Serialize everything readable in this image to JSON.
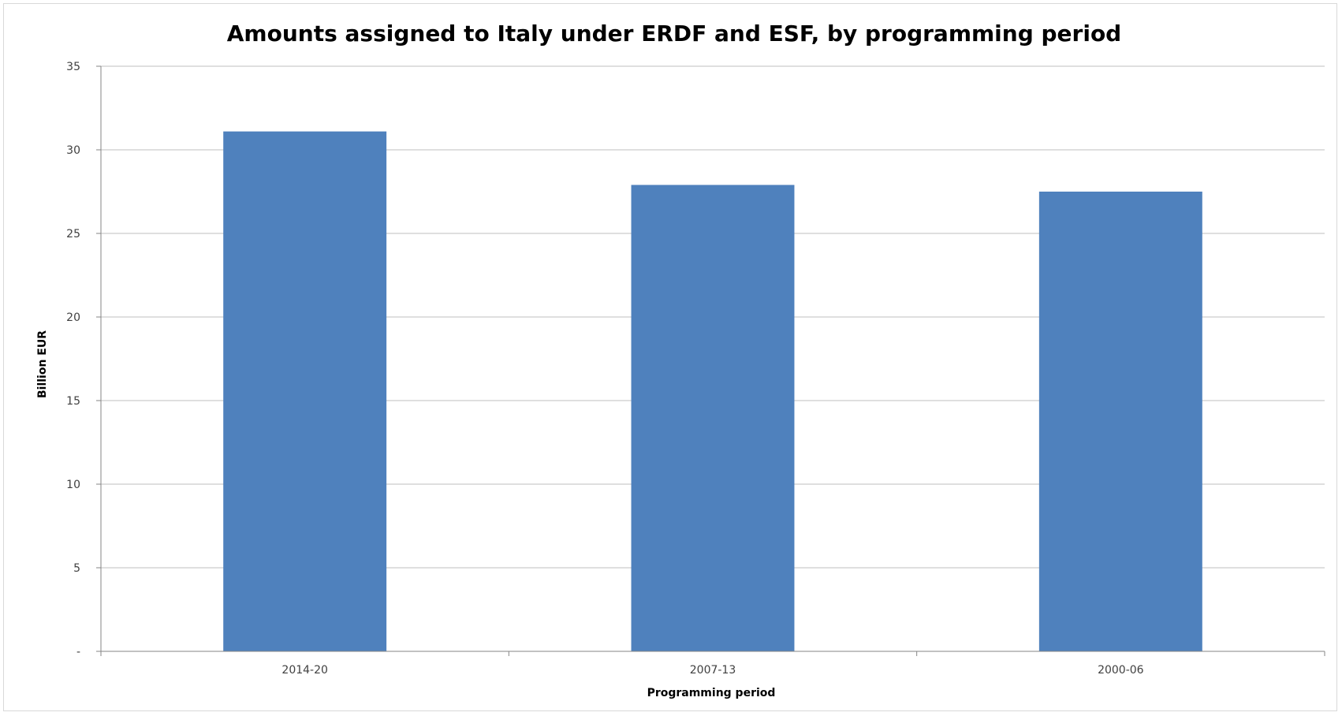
{
  "chart_data": {
    "type": "bar",
    "title": "Amounts assigned to Italy under ERDF and ESF, by programming period",
    "xlabel": "Programming period",
    "ylabel": "Billion EUR",
    "categories": [
      "2014-20",
      "2007-13",
      "2000-06"
    ],
    "values": [
      31.1,
      27.9,
      27.5
    ],
    "ylim": [
      0,
      35
    ],
    "yticks": [
      0,
      5,
      10,
      15,
      20,
      25,
      30,
      35
    ],
    "ytick_labels": [
      "-",
      "5",
      "10",
      "15",
      "20",
      "25",
      "30",
      "35"
    ],
    "grid": true,
    "legend": "none",
    "colors": {
      "bar": "#4f81bd",
      "grid": "#bfbfbf",
      "axis": "#868686"
    }
  }
}
